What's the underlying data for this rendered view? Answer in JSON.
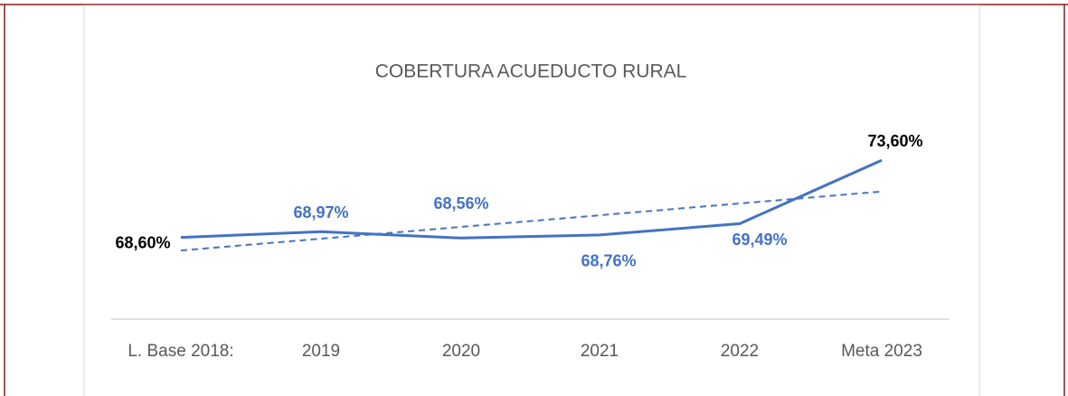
{
  "chart_data": {
    "type": "line",
    "title": "COBERTURA ACUEDUCTO RURAL",
    "categories": [
      "L. Base 2018:",
      "2019",
      "2020",
      "2021",
      "2022",
      "Meta 2023"
    ],
    "series": [
      {
        "name": "Cobertura",
        "color": "#4472c4",
        "values": [
          68.6,
          68.97,
          68.56,
          68.76,
          69.49,
          73.6
        ],
        "value_labels": [
          "68,60%",
          "68,97%",
          "68,56%",
          "68,76%",
          "69,49%",
          "73,60%"
        ],
        "label_colors": [
          "#000000",
          "#4472c4",
          "#4472c4",
          "#4472c4",
          "#4472c4",
          "#000000"
        ]
      }
    ],
    "ylim": [
      63.3,
      75.2
    ],
    "trendline": true
  }
}
